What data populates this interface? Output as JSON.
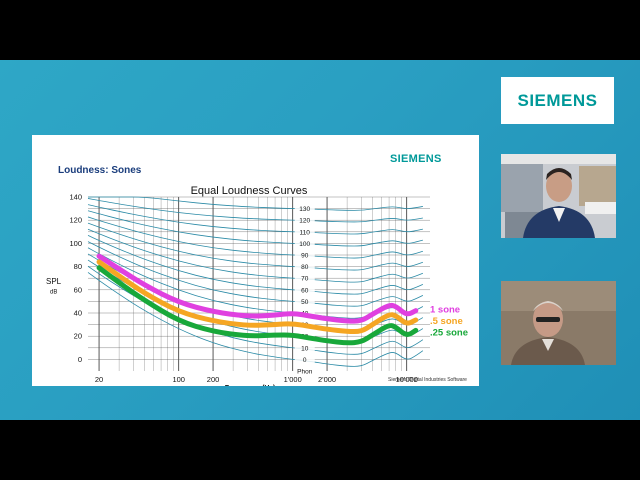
{
  "logo": {
    "text": "SIEMENS"
  },
  "slide": {
    "title": "Loudness: Sones",
    "logo": "SIEMENS",
    "footer": "Siemens Digital Industries Software"
  },
  "chart_data": {
    "type": "line",
    "title": "Equal Loudness Curves",
    "xlabel": "Frequency (Hz)",
    "ylabel": "SPL",
    "ylabel_unit": "dB",
    "xscale": "log",
    "xlim": [
      16,
      16000
    ],
    "ylim": [
      -10,
      140
    ],
    "x_tick_labels": [
      {
        "x": 20,
        "label": "20"
      },
      {
        "x": 100,
        "label": "100"
      },
      {
        "x": 200,
        "label": "200"
      },
      {
        "x": 1000,
        "label": "1'000"
      },
      {
        "x": 2000,
        "label": "2'000"
      },
      {
        "x": 10000,
        "label": "10'000"
      }
    ],
    "y_ticks": [
      0,
      20,
      40,
      60,
      80,
      100,
      120,
      140
    ],
    "phon_labels": [
      "130",
      "120",
      "110",
      "100",
      "90",
      "80",
      "70",
      "60",
      "50",
      "40",
      "30",
      "20",
      "10",
      "0",
      "Phon"
    ],
    "phon_contours": [
      0,
      10,
      20,
      30,
      40,
      50,
      60,
      70,
      80,
      90,
      100,
      110,
      120,
      130
    ],
    "grid": true,
    "series": [
      {
        "name": "1 sone",
        "color": "#e040e0",
        "x": [
          20,
          30,
          50,
          100,
          200,
          400,
          700,
          1000,
          1500,
          2000,
          3000,
          4000,
          5000,
          7000,
          8000,
          10000,
          12000
        ],
        "y": [
          89,
          78,
          64,
          49,
          41,
          37,
          38,
          40,
          37,
          35,
          33,
          33,
          39,
          47,
          46,
          38,
          42
        ]
      },
      {
        "name": ".5 sone",
        "color": "#f5a623",
        "x": [
          20,
          30,
          50,
          100,
          200,
          400,
          700,
          1000,
          1500,
          2000,
          3000,
          4000,
          5000,
          7000,
          8000,
          10000,
          12000
        ],
        "y": [
          84,
          72,
          57,
          41,
          33,
          29,
          30,
          31,
          28,
          26,
          24,
          24,
          30,
          39,
          38,
          30,
          34
        ]
      },
      {
        "name": ".25 sone",
        "color": "#18a83a",
        "x": [
          20,
          30,
          50,
          100,
          200,
          400,
          700,
          1000,
          1500,
          2000,
          3000,
          4000,
          5000,
          7000,
          8000,
          10000,
          12000
        ],
        "y": [
          79,
          66,
          51,
          33,
          24,
          20,
          21,
          21,
          18,
          16,
          14,
          15,
          21,
          30,
          28,
          20,
          25
        ]
      }
    ]
  },
  "colors": {
    "background": "#2ea7c6",
    "siemens_teal": "#009999",
    "grid_line": "#2a8aa6"
  }
}
